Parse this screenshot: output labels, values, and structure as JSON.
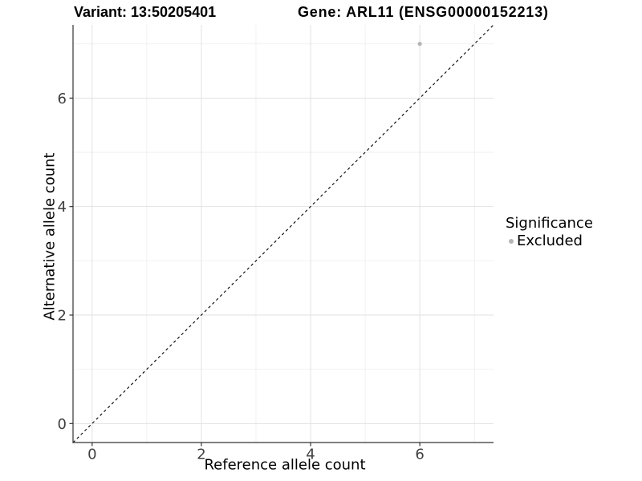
{
  "chart_data": {
    "type": "scatter",
    "titles": {
      "variant": "Variant: 13:50205401",
      "gene": "Gene: ARL11 (ENSG00000152213)"
    },
    "xlabel": "Reference allele count",
    "ylabel": "Alternative allele count",
    "xlim": [
      -0.35,
      7.35
    ],
    "ylim": [
      -0.35,
      7.35
    ],
    "xticks": [
      0,
      2,
      4,
      6
    ],
    "yticks": [
      0,
      2,
      4,
      6
    ],
    "minor_gridlines": [
      1,
      3,
      5,
      7
    ],
    "points": [
      {
        "x": 6,
        "y": 7,
        "series": "Excluded",
        "color": "#b5b5b5"
      }
    ],
    "reference_line": {
      "kind": "identity y = x",
      "style": "dashed",
      "color": "#000000"
    },
    "legend": {
      "title": "Significance",
      "position": "right",
      "items": [
        {
          "label": "Excluded",
          "color": "#b5b5b5",
          "marker": "circle"
        }
      ]
    },
    "grid": true,
    "style": {
      "background": "#ffffff",
      "major_grid": "#e2e2e2",
      "minor_grid": "#efefef",
      "axis_line": "#333333",
      "tick_label_color": "#404040",
      "point_radius": 2.6
    }
  }
}
